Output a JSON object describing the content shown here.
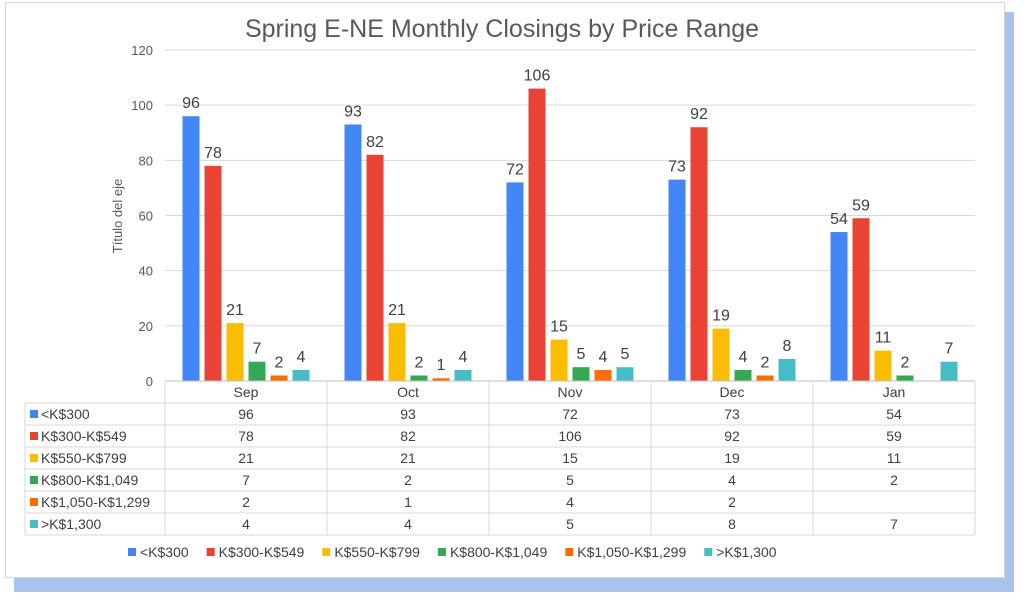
{
  "chart_data": {
    "type": "bar",
    "title": "Spring E-NE Monthly Closings by Price Range",
    "xlabel": "",
    "ylabel": "Título del eje",
    "ylim": [
      0,
      120
    ],
    "yticks": [
      0,
      20,
      40,
      60,
      80,
      100,
      120
    ],
    "grid": true,
    "legend_position": "bottom",
    "categories": [
      "Sep",
      "Oct",
      "Nov",
      "Dec",
      "Jan"
    ],
    "series": [
      {
        "name": "<K$300",
        "color": "#4285f4",
        "values": [
          96,
          93,
          72,
          73,
          54
        ]
      },
      {
        "name": "K$300-K$549",
        "color": "#ea4335",
        "values": [
          78,
          82,
          106,
          92,
          59
        ]
      },
      {
        "name": "K$550-K$799",
        "color": "#fbbc04",
        "values": [
          21,
          21,
          15,
          19,
          11
        ]
      },
      {
        "name": "K$800-K$1,049",
        "color": "#34a853",
        "values": [
          7,
          2,
          5,
          4,
          2
        ]
      },
      {
        "name": "K$1,050-K$1,299",
        "color": "#ff6d01",
        "values": [
          2,
          1,
          4,
          2,
          null
        ]
      },
      {
        "name": ">K$1,300",
        "color": "#46bdc6",
        "values": [
          4,
          4,
          5,
          8,
          7
        ]
      }
    ]
  }
}
